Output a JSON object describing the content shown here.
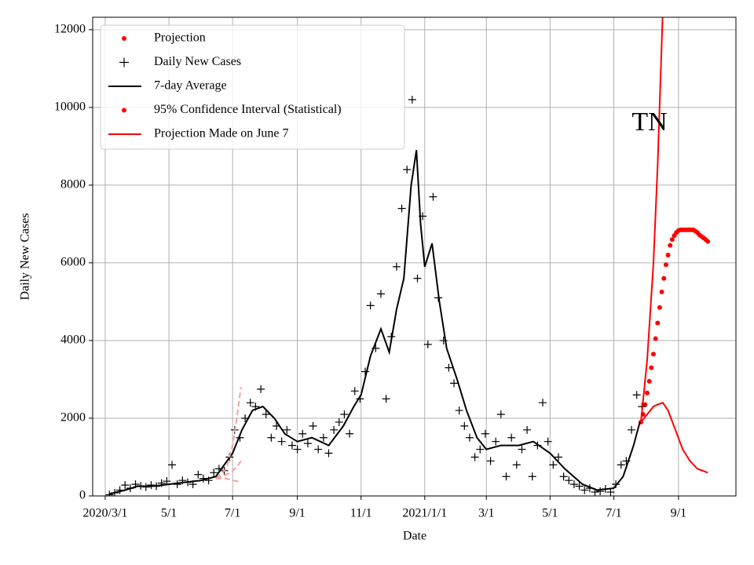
{
  "chart_data": {
    "type": "line",
    "annotation": "TN",
    "xlabel": "Date",
    "ylabel": "Daily New Cases",
    "xlim": [
      "2020-02-18",
      "2021-10-26"
    ],
    "ylim": [
      0,
      12320
    ],
    "yticks": [
      0,
      2000,
      4000,
      6000,
      8000,
      10000,
      12000
    ],
    "xticks": [
      {
        "value": "2020-03-01",
        "label": "2020/3/1"
      },
      {
        "value": "2020-05-01",
        "label": "5/1"
      },
      {
        "value": "2020-07-01",
        "label": "7/1"
      },
      {
        "value": "2020-09-01",
        "label": "9/1"
      },
      {
        "value": "2020-11-01",
        "label": "11/1"
      },
      {
        "value": "2021-01-01",
        "label": "2021/1/1"
      },
      {
        "value": "2021-03-01",
        "label": "3/1"
      },
      {
        "value": "2021-05-01",
        "label": "5/1"
      },
      {
        "value": "2021-07-01",
        "label": "7/1"
      },
      {
        "value": "2021-09-01",
        "label": "9/1"
      }
    ],
    "grid": true,
    "legend": "upper left",
    "series": [
      {
        "name": "Projection",
        "style": "dots",
        "color": "#ff0000",
        "x": [
          "2021-07-27",
          "2021-07-29",
          "2021-07-31",
          "2021-08-02",
          "2021-08-04",
          "2021-08-06",
          "2021-08-08",
          "2021-08-10",
          "2021-08-12",
          "2021-08-14",
          "2021-08-16",
          "2021-08-18",
          "2021-08-20",
          "2021-08-22",
          "2021-08-24",
          "2021-08-26",
          "2021-08-28",
          "2021-08-30",
          "2021-09-01",
          "2021-09-03",
          "2021-09-05",
          "2021-09-07",
          "2021-09-09",
          "2021-09-11",
          "2021-09-13",
          "2021-09-15",
          "2021-09-17",
          "2021-09-19",
          "2021-09-21",
          "2021-09-23",
          "2021-09-25",
          "2021-09-27",
          "2021-09-29"
        ],
        "values": [
          1900,
          2100,
          2350,
          2650,
          2950,
          3300,
          3650,
          4050,
          4450,
          4850,
          5250,
          5600,
          5950,
          6200,
          6450,
          6600,
          6700,
          6780,
          6830,
          6850,
          6850,
          6850,
          6850,
          6850,
          6850,
          6850,
          6820,
          6780,
          6720,
          6680,
          6640,
          6600,
          6550
        ]
      },
      {
        "name": "Daily New Cases",
        "style": "plus",
        "color": "#000000",
        "x": [
          "2020-03-05",
          "2020-03-10",
          "2020-03-15",
          "2020-03-20",
          "2020-03-25",
          "2020-03-30",
          "2020-04-04",
          "2020-04-09",
          "2020-04-14",
          "2020-04-19",
          "2020-04-24",
          "2020-04-29",
          "2020-05-04",
          "2020-05-09",
          "2020-05-14",
          "2020-05-19",
          "2020-05-24",
          "2020-05-29",
          "2020-06-03",
          "2020-06-08",
          "2020-06-13",
          "2020-06-18",
          "2020-06-23",
          "2020-06-28",
          "2020-07-03",
          "2020-07-08",
          "2020-07-13",
          "2020-07-18",
          "2020-07-23",
          "2020-07-28",
          "2020-08-02",
          "2020-08-07",
          "2020-08-12",
          "2020-08-17",
          "2020-08-22",
          "2020-08-27",
          "2020-09-01",
          "2020-09-06",
          "2020-09-11",
          "2020-09-16",
          "2020-09-21",
          "2020-09-26",
          "2020-10-01",
          "2020-10-06",
          "2020-10-11",
          "2020-10-16",
          "2020-10-21",
          "2020-10-26",
          "2020-10-31",
          "2020-11-05",
          "2020-11-10",
          "2020-11-15",
          "2020-11-20",
          "2020-11-25",
          "2020-11-30",
          "2020-12-05",
          "2020-12-10",
          "2020-12-15",
          "2020-12-20",
          "2020-12-25",
          "2020-12-30",
          "2021-01-04",
          "2021-01-09",
          "2021-01-14",
          "2021-01-19",
          "2021-01-24",
          "2021-01-29",
          "2021-02-03",
          "2021-02-08",
          "2021-02-13",
          "2021-02-18",
          "2021-02-23",
          "2021-02-28",
          "2021-03-05",
          "2021-03-10",
          "2021-03-15",
          "2021-03-20",
          "2021-03-25",
          "2021-03-30",
          "2021-04-04",
          "2021-04-09",
          "2021-04-14",
          "2021-04-19",
          "2021-04-24",
          "2021-04-29",
          "2021-05-04",
          "2021-05-09",
          "2021-05-14",
          "2021-05-19",
          "2021-05-24",
          "2021-05-29",
          "2021-06-03",
          "2021-06-08",
          "2021-06-13",
          "2021-06-18",
          "2021-06-23",
          "2021-06-28",
          "2021-07-03",
          "2021-07-08",
          "2021-07-13",
          "2021-07-18",
          "2021-07-23",
          "2021-07-28"
        ],
        "values": [
          30,
          80,
          150,
          280,
          200,
          300,
          260,
          230,
          280,
          250,
          330,
          380,
          800,
          300,
          400,
          350,
          300,
          550,
          450,
          400,
          600,
          700,
          650,
          1000,
          1700,
          1500,
          2000,
          2400,
          2300,
          2750,
          2100,
          1500,
          1800,
          1400,
          1700,
          1300,
          1200,
          1600,
          1350,
          1800,
          1200,
          1500,
          1100,
          1700,
          1900,
          2100,
          1600,
          2700,
          2500,
          3200,
          4900,
          3800,
          5200,
          2500,
          4100,
          5900,
          7400,
          8400,
          10200,
          5600,
          7200,
          3900,
          7700,
          5100,
          4000,
          3300,
          2900,
          2200,
          1800,
          1500,
          1000,
          1200,
          1600,
          900,
          1400,
          2100,
          500,
          1500,
          800,
          1200,
          1700,
          500,
          1300,
          2400,
          1400,
          800,
          1000,
          500,
          400,
          300,
          250,
          150,
          200,
          100,
          120,
          180,
          100,
          300,
          800,
          900,
          1700,
          2600,
          2300
        ]
      },
      {
        "name": "7-day Average",
        "style": "line",
        "color": "#000000",
        "x": [
          "2020-03-05",
          "2020-03-20",
          "2020-04-01",
          "2020-04-15",
          "2020-05-01",
          "2020-05-15",
          "2020-06-01",
          "2020-06-15",
          "2020-07-01",
          "2020-07-10",
          "2020-07-20",
          "2020-07-30",
          "2020-08-10",
          "2020-08-20",
          "2020-09-01",
          "2020-09-15",
          "2020-10-01",
          "2020-10-15",
          "2020-10-25",
          "2020-11-01",
          "2020-11-10",
          "2020-11-20",
          "2020-11-28",
          "2020-12-05",
          "2020-12-12",
          "2020-12-19",
          "2020-12-24",
          "2020-12-28",
          "2021-01-01",
          "2021-01-08",
          "2021-01-15",
          "2021-01-22",
          "2021-02-01",
          "2021-02-10",
          "2021-02-20",
          "2021-03-01",
          "2021-03-15",
          "2021-04-01",
          "2021-04-15",
          "2021-05-01",
          "2021-05-15",
          "2021-06-01",
          "2021-06-15",
          "2021-07-01",
          "2021-07-10",
          "2021-07-20",
          "2021-07-26"
        ],
        "values": [
          50,
          150,
          250,
          250,
          300,
          350,
          400,
          500,
          1100,
          1700,
          2200,
          2300,
          2000,
          1600,
          1400,
          1500,
          1300,
          1800,
          2300,
          2600,
          3600,
          4300,
          3700,
          4800,
          5600,
          8000,
          8900,
          7000,
          5900,
          6500,
          5000,
          3800,
          3000,
          2200,
          1500,
          1200,
          1300,
          1300,
          1400,
          1100,
          700,
          300,
          150,
          200,
          500,
          1300,
          1900
        ]
      },
      {
        "name": "95% Confidence Interval (Statistical)",
        "style": "band",
        "color": "#ff0000",
        "x": [
          "2021-07-27",
          "2021-08-02",
          "2021-08-08",
          "2021-08-12",
          "2021-08-17",
          "2021-08-22",
          "2021-08-29",
          "2021-09-05",
          "2021-09-12",
          "2021-09-19",
          "2021-09-29"
        ],
        "upper": [
          1900,
          3500,
          6000,
          8500,
          12500,
          null,
          null,
          null,
          null,
          null,
          null
        ],
        "lower": [
          1900,
          2100,
          2300,
          2350,
          2400,
          2200,
          1700,
          1200,
          900,
          700,
          600
        ]
      },
      {
        "name": "Projection Made on June 7",
        "style": "line",
        "color": "#ff0000",
        "dashed_color": "#f4a0a0",
        "x": [
          "2020-06-15",
          "2020-06-25",
          "2020-07-01",
          "2020-07-05",
          "2020-07-09"
        ],
        "values": [
          450,
          550,
          650,
          750,
          900
        ],
        "upper": [
          450,
          700,
          1300,
          2000,
          2800
        ],
        "lower": [
          450,
          450,
          400,
          380,
          350
        ]
      }
    ]
  }
}
